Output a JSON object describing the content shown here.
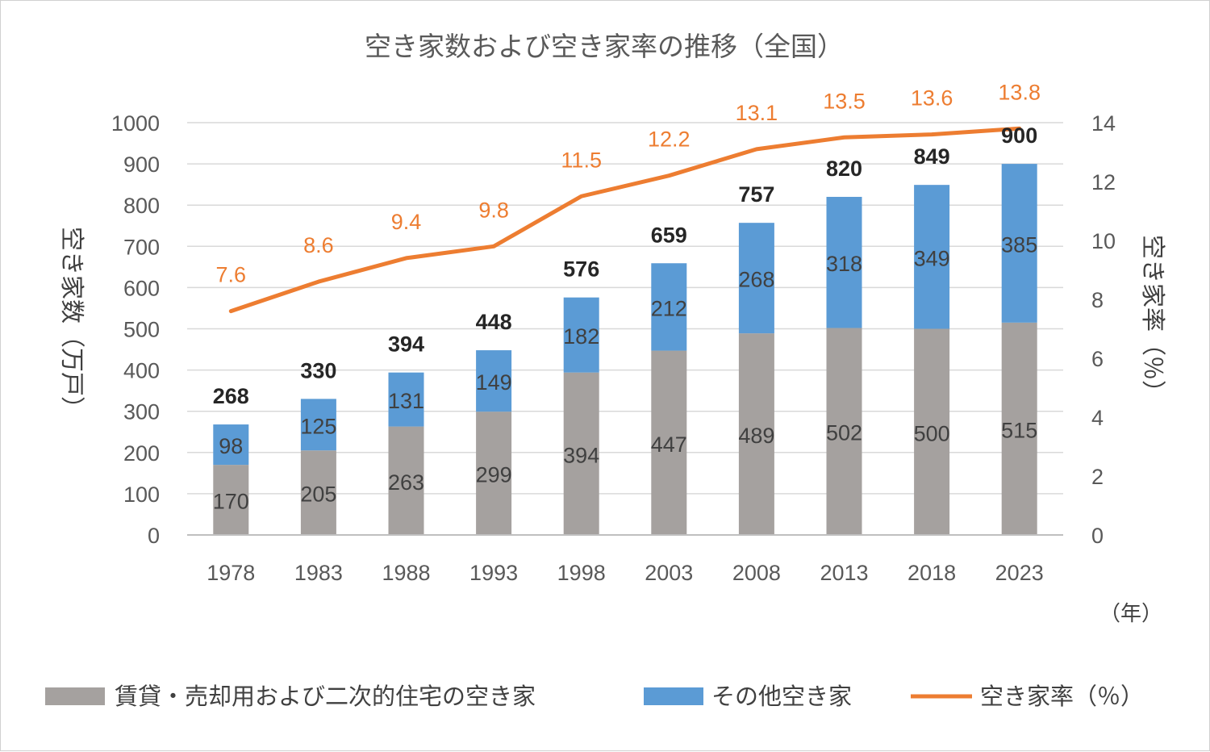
{
  "chart_data": {
    "type": "bar",
    "stacked": true,
    "title": "空き家数および空き家率の推移（全国）",
    "categories": [
      "1978",
      "1983",
      "1988",
      "1993",
      "1998",
      "2003",
      "2008",
      "2013",
      "2018",
      "2023"
    ],
    "x_unit": "（年）",
    "ylabel": "空き家数（万戸）",
    "ylim": [
      0,
      1000
    ],
    "yticks": [
      0,
      100,
      200,
      300,
      400,
      500,
      600,
      700,
      800,
      900,
      1000
    ],
    "y2label": "空き家率（％）",
    "y2lim": [
      0,
      14
    ],
    "y2ticks": [
      0,
      2,
      4,
      6,
      8,
      10,
      12,
      14
    ],
    "grid": true,
    "legend_position": "bottom",
    "series": [
      {
        "name": "賃貸・売却用および二次的住宅の空き家",
        "kind": "bar",
        "color": "#A5A19F",
        "values": [
          170,
          205,
          263,
          299,
          394,
          447,
          489,
          502,
          500,
          515
        ]
      },
      {
        "name": "その他空き家",
        "kind": "bar",
        "color": "#5B9BD5",
        "values": [
          98,
          125,
          131,
          149,
          182,
          212,
          268,
          318,
          349,
          385
        ]
      },
      {
        "name": "空き家率（％）",
        "kind": "line",
        "axis": "right",
        "color": "#ED7D31",
        "values": [
          7.6,
          8.6,
          9.4,
          9.8,
          11.5,
          12.2,
          13.1,
          13.5,
          13.6,
          13.8
        ],
        "labels": [
          "7.6",
          "8.6",
          "9.4",
          "9.8",
          "11.5",
          "12.2",
          "13.1",
          "13.5",
          "13.6",
          "13.8"
        ]
      }
    ],
    "totals": [
      268,
      330,
      394,
      448,
      576,
      659,
      757,
      820,
      849,
      900
    ]
  }
}
